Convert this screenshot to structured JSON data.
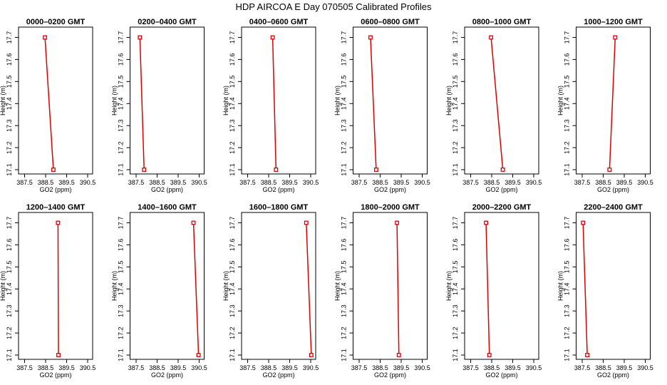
{
  "title": "HDP  AIRCOA E  Day 070505  Calibrated Profiles",
  "chart_data": [
    {
      "type": "line",
      "title": "0000–0200 GMT",
      "xlabel": "GO2 (ppm)",
      "ylabel": "Height (m)",
      "xlim": [
        387.5,
        390.5
      ],
      "ylim": [
        17.1,
        17.7
      ],
      "xticks": [
        "387.5",
        "388.5",
        "389.5",
        "390.5"
      ],
      "yticks": [
        "17.1",
        "17.2",
        "17.3",
        "17.4",
        "17.5",
        "17.6",
        "17.7"
      ],
      "series": [
        {
          "color": "#dd0000",
          "points": [
            {
              "x": 388.47,
              "y": 17.7
            },
            {
              "x": 388.87,
              "y": 17.1
            }
          ]
        }
      ]
    },
    {
      "type": "line",
      "title": "0200–0400 GMT",
      "xlabel": "GO2 (ppm)",
      "ylabel": "Height (m)",
      "xlim": [
        387.5,
        390.5
      ],
      "ylim": [
        17.1,
        17.7
      ],
      "xticks": [
        "387.5",
        "388.5",
        "389.5",
        "390.5"
      ],
      "yticks": [
        "17.1",
        "17.2",
        "17.3",
        "17.4",
        "17.5",
        "17.6",
        "17.7"
      ],
      "series": [
        {
          "color": "#dd0000",
          "points": [
            {
              "x": 387.68,
              "y": 17.7
            },
            {
              "x": 387.88,
              "y": 17.1
            }
          ]
        }
      ]
    },
    {
      "type": "line",
      "title": "0400–0600 GMT",
      "xlabel": "GO2 (ppm)",
      "ylabel": "Height (m)",
      "xlim": [
        387.5,
        390.5
      ],
      "ylim": [
        17.1,
        17.7
      ],
      "xticks": [
        "387.5",
        "388.5",
        "389.5",
        "390.5"
      ],
      "yticks": [
        "17.1",
        "17.2",
        "17.3",
        "17.4",
        "17.5",
        "17.6",
        "17.7"
      ],
      "series": [
        {
          "color": "#dd0000",
          "points": [
            {
              "x": 388.69,
              "y": 17.7
            },
            {
              "x": 388.85,
              "y": 17.1
            }
          ]
        }
      ]
    },
    {
      "type": "line",
      "title": "0600–0800 GMT",
      "xlabel": "GO2 (ppm)",
      "ylabel": "Height (m)",
      "xlim": [
        387.5,
        390.5
      ],
      "ylim": [
        17.1,
        17.7
      ],
      "xticks": [
        "387.5",
        "388.5",
        "389.5",
        "390.5"
      ],
      "yticks": [
        "17.1",
        "17.2",
        "17.3",
        "17.4",
        "17.5",
        "17.6",
        "17.7"
      ],
      "series": [
        {
          "color": "#dd0000",
          "points": [
            {
              "x": 388.04,
              "y": 17.7
            },
            {
              "x": 388.31,
              "y": 17.1
            }
          ]
        }
      ]
    },
    {
      "type": "line",
      "title": "0800–1000 GMT",
      "xlabel": "GO2 (ppm)",
      "ylabel": "Height (m)",
      "xlim": [
        387.5,
        390.5
      ],
      "ylim": [
        17.1,
        17.7
      ],
      "xticks": [
        "387.5",
        "388.5",
        "389.5",
        "390.5"
      ],
      "yticks": [
        "17.1",
        "17.2",
        "17.3",
        "17.4",
        "17.5",
        "17.6",
        "17.7"
      ],
      "series": [
        {
          "color": "#dd0000",
          "points": [
            {
              "x": 388.47,
              "y": 17.7
            },
            {
              "x": 389.03,
              "y": 17.1
            }
          ]
        }
      ]
    },
    {
      "type": "line",
      "title": "1000–1200 GMT",
      "xlabel": "GO2 (ppm)",
      "ylabel": "Height (m)",
      "xlim": [
        387.5,
        390.5
      ],
      "ylim": [
        17.1,
        17.7
      ],
      "xticks": [
        "387.5",
        "388.5",
        "389.5",
        "390.5"
      ],
      "yticks": [
        "17.1",
        "17.2",
        "17.3",
        "17.4",
        "17.5",
        "17.6",
        "17.7"
      ],
      "series": [
        {
          "color": "#dd0000",
          "points": [
            {
              "x": 389.07,
              "y": 17.7
            },
            {
              "x": 388.8,
              "y": 17.1
            }
          ]
        }
      ]
    },
    {
      "type": "line",
      "title": "1200–1400 GMT",
      "xlabel": "GO2 (ppm)",
      "ylabel": "Height (m)",
      "xlim": [
        387.5,
        390.5
      ],
      "ylim": [
        17.1,
        17.7
      ],
      "xticks": [
        "387.5",
        "388.5",
        "389.5",
        "390.5"
      ],
      "yticks": [
        "17.1",
        "17.2",
        "17.3",
        "17.4",
        "17.5",
        "17.6",
        "17.7"
      ],
      "series": [
        {
          "color": "#dd0000",
          "points": [
            {
              "x": 389.09,
              "y": 17.7
            },
            {
              "x": 389.11,
              "y": 17.1
            }
          ]
        }
      ]
    },
    {
      "type": "line",
      "title": "1400–1600 GMT",
      "xlabel": "GO2 (ppm)",
      "ylabel": "Height (m)",
      "xlim": [
        387.5,
        390.5
      ],
      "ylim": [
        17.1,
        17.7
      ],
      "xticks": [
        "387.5",
        "388.5",
        "389.5",
        "390.5"
      ],
      "yticks": [
        "17.1",
        "17.2",
        "17.3",
        "17.4",
        "17.5",
        "17.6",
        "17.7"
      ],
      "series": [
        {
          "color": "#dd0000",
          "points": [
            {
              "x": 390.23,
              "y": 17.7
            },
            {
              "x": 390.47,
              "y": 17.1
            }
          ]
        }
      ]
    },
    {
      "type": "line",
      "title": "1600–1800 GMT",
      "xlabel": "GO2 (ppm)",
      "ylabel": "Height (m)",
      "xlim": [
        387.5,
        390.5
      ],
      "ylim": [
        17.1,
        17.7
      ],
      "xticks": [
        "387.5",
        "388.5",
        "389.5",
        "390.5"
      ],
      "yticks": [
        "17.1",
        "17.2",
        "17.3",
        "17.4",
        "17.5",
        "17.6",
        "17.7"
      ],
      "series": [
        {
          "color": "#dd0000",
          "points": [
            {
              "x": 390.29,
              "y": 17.7
            },
            {
              "x": 390.53,
              "y": 17.1
            }
          ]
        }
      ]
    },
    {
      "type": "line",
      "title": "1800–2000 GMT",
      "xlabel": "GO2 (ppm)",
      "ylabel": "Height (m)",
      "xlim": [
        387.5,
        390.5
      ],
      "ylim": [
        17.1,
        17.7
      ],
      "xticks": [
        "387.5",
        "388.5",
        "389.5",
        "390.5"
      ],
      "yticks": [
        "17.1",
        "17.2",
        "17.3",
        "17.4",
        "17.5",
        "17.6",
        "17.7"
      ],
      "series": [
        {
          "color": "#dd0000",
          "points": [
            {
              "x": 389.3,
              "y": 17.7
            },
            {
              "x": 389.39,
              "y": 17.1
            }
          ]
        }
      ]
    },
    {
      "type": "line",
      "title": "2000–2200 GMT",
      "xlabel": "GO2 (ppm)",
      "ylabel": "Height (m)",
      "xlim": [
        387.5,
        390.5
      ],
      "ylim": [
        17.1,
        17.7
      ],
      "xticks": [
        "387.5",
        "388.5",
        "389.5",
        "390.5"
      ],
      "yticks": [
        "17.1",
        "17.2",
        "17.3",
        "17.4",
        "17.5",
        "17.6",
        "17.7"
      ],
      "series": [
        {
          "color": "#dd0000",
          "points": [
            {
              "x": 388.23,
              "y": 17.7
            },
            {
              "x": 388.39,
              "y": 17.1
            }
          ]
        }
      ]
    },
    {
      "type": "line",
      "title": "2200–2400 GMT",
      "xlabel": "GO2 (ppm)",
      "ylabel": "Height (m)",
      "xlim": [
        387.5,
        390.5
      ],
      "ylim": [
        17.1,
        17.7
      ],
      "xticks": [
        "387.5",
        "388.5",
        "389.5",
        "390.5"
      ],
      "yticks": [
        "17.1",
        "17.2",
        "17.3",
        "17.4",
        "17.5",
        "17.6",
        "17.7"
      ],
      "series": [
        {
          "color": "#dd0000",
          "points": [
            {
              "x": 387.54,
              "y": 17.7
            },
            {
              "x": 387.74,
              "y": 17.1
            }
          ]
        }
      ]
    }
  ]
}
